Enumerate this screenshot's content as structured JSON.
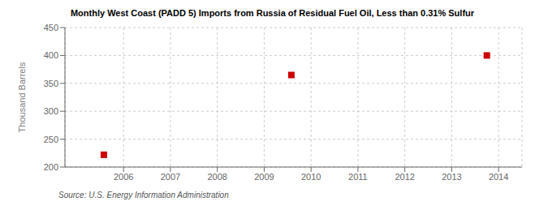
{
  "chart_data": {
    "type": "scatter",
    "title": "Monthly West Coast (PADD 5) Imports from Russia of Residual Fuel Oil, Less than 0.31% Sulfur",
    "ylabel": "Thousand Barrels",
    "source": "Source: U.S. Energy Information Administration",
    "x": [
      2005.58,
      2009.58,
      2013.75
    ],
    "values": [
      222,
      365,
      400
    ],
    "color": "#cc0000",
    "marker": "square",
    "xlim": [
      2004.75,
      2014.5
    ],
    "ylim": [
      200,
      450
    ],
    "xticks": [
      2006,
      2007,
      2008,
      2009,
      2010,
      2011,
      2012,
      2013,
      2014
    ],
    "yticks": [
      200,
      250,
      300,
      350,
      400,
      450
    ],
    "grid": true
  }
}
